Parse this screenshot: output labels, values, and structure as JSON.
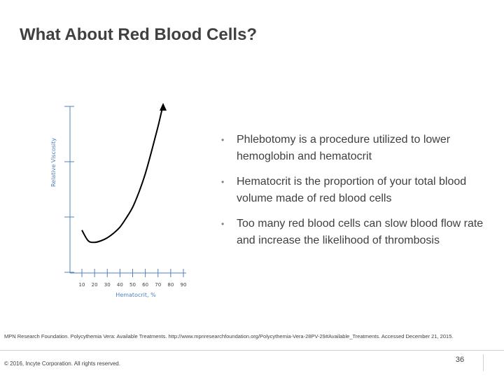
{
  "slide": {
    "title": "What About Red Blood Cells?",
    "bullet_symbol": "•",
    "bullets": [
      "Phlebotomy is a procedure utilized to lower hemoglobin and hematocrit",
      "Hematocrit is the proportion of your total blood volume made of red blood cells",
      "Too many red blood cells can slow blood flow rate and increase the likelihood of thrombosis"
    ],
    "reference": "MPN Research Foundation. Polycythemia Vera: Available Treatments. http://www.mpnresearchfoundation.org/Polycythemia-Vera-28PV-29#Available_Treatments. Accessed December 21, 2015.",
    "copyright": "© 2016, Incyte Corporation. All rights reserved.",
    "page_number": "36"
  },
  "colors": {
    "axis": "#4f81bd",
    "curve": "#000000",
    "text": "#404040"
  },
  "chart_data": {
    "type": "line",
    "title": "",
    "xlabel": "Hematocrit, %",
    "ylabel": "Relative Viscosity",
    "x_ticks": [
      "10",
      "20",
      "30",
      "40",
      "50",
      "60",
      "70",
      "80",
      "90"
    ],
    "x_tick_values": [
      10,
      20,
      30,
      40,
      50,
      60,
      70,
      80,
      90
    ],
    "xlim": [
      0,
      90
    ],
    "y_ticks_labeled": false,
    "y_tick_count": 4,
    "ylim": [
      0,
      1
    ],
    "series": [
      {
        "x": [
          10,
          15,
          20,
          25,
          30,
          35,
          40,
          45,
          50,
          55,
          60,
          65,
          70,
          72,
          74
        ],
        "y": [
          0.18,
          0.11,
          0.1,
          0.11,
          0.13,
          0.16,
          0.2,
          0.26,
          0.33,
          0.43,
          0.55,
          0.7,
          0.86,
          0.93,
          1.0
        ]
      }
    ],
    "end_marker": "arrow",
    "grid": false,
    "legend": "none"
  }
}
